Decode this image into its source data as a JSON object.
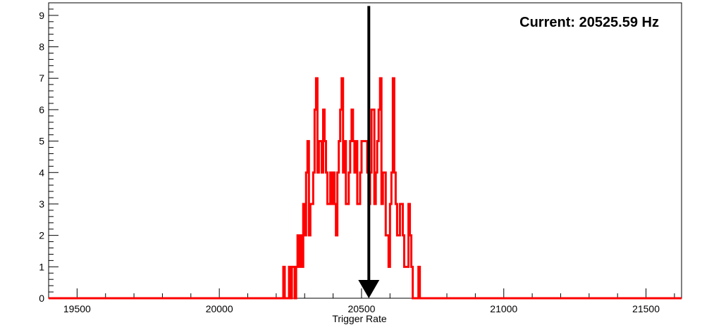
{
  "chart_data": {
    "type": "histogram",
    "title": "",
    "xlabel": "Trigger Rate",
    "ylabel": "",
    "xlim": [
      19400,
      21625
    ],
    "ylim": [
      0,
      9.4
    ],
    "xticks": [
      19500,
      20000,
      20500,
      21000,
      21500
    ],
    "yticks": [
      0,
      1,
      2,
      3,
      4,
      5,
      6,
      7,
      8,
      9
    ],
    "bin_width": 5,
    "bin_start": 20225,
    "counts": [
      1,
      0,
      0,
      0,
      1,
      0,
      1,
      1,
      0,
      1,
      2,
      1,
      2,
      1,
      3,
      2,
      4,
      5,
      2,
      3,
      3,
      4,
      6,
      7,
      4,
      5,
      5,
      4,
      6,
      5,
      4,
      3,
      3,
      4,
      3,
      4,
      3,
      2,
      4,
      5,
      6,
      7,
      4,
      5,
      3,
      3,
      4,
      5,
      6,
      5,
      4,
      5,
      3,
      3,
      4,
      5,
      5,
      5,
      5,
      4,
      3,
      4,
      6,
      6,
      3,
      4,
      5,
      6,
      7,
      3,
      4,
      4,
      2,
      2,
      1,
      3,
      4,
      7,
      4,
      3,
      2,
      2,
      3,
      3,
      2,
      1,
      1,
      1,
      3,
      2,
      1,
      0,
      0,
      0,
      0,
      1
    ],
    "series_color": "#ff0000",
    "marker": {
      "type": "arrow-down",
      "x_value": 20525.59,
      "y_top": 9.3,
      "y_bottom": 0,
      "color": "#000000"
    },
    "annotation": {
      "text": "Current: 20525.59 Hz",
      "position": "top-right"
    }
  }
}
